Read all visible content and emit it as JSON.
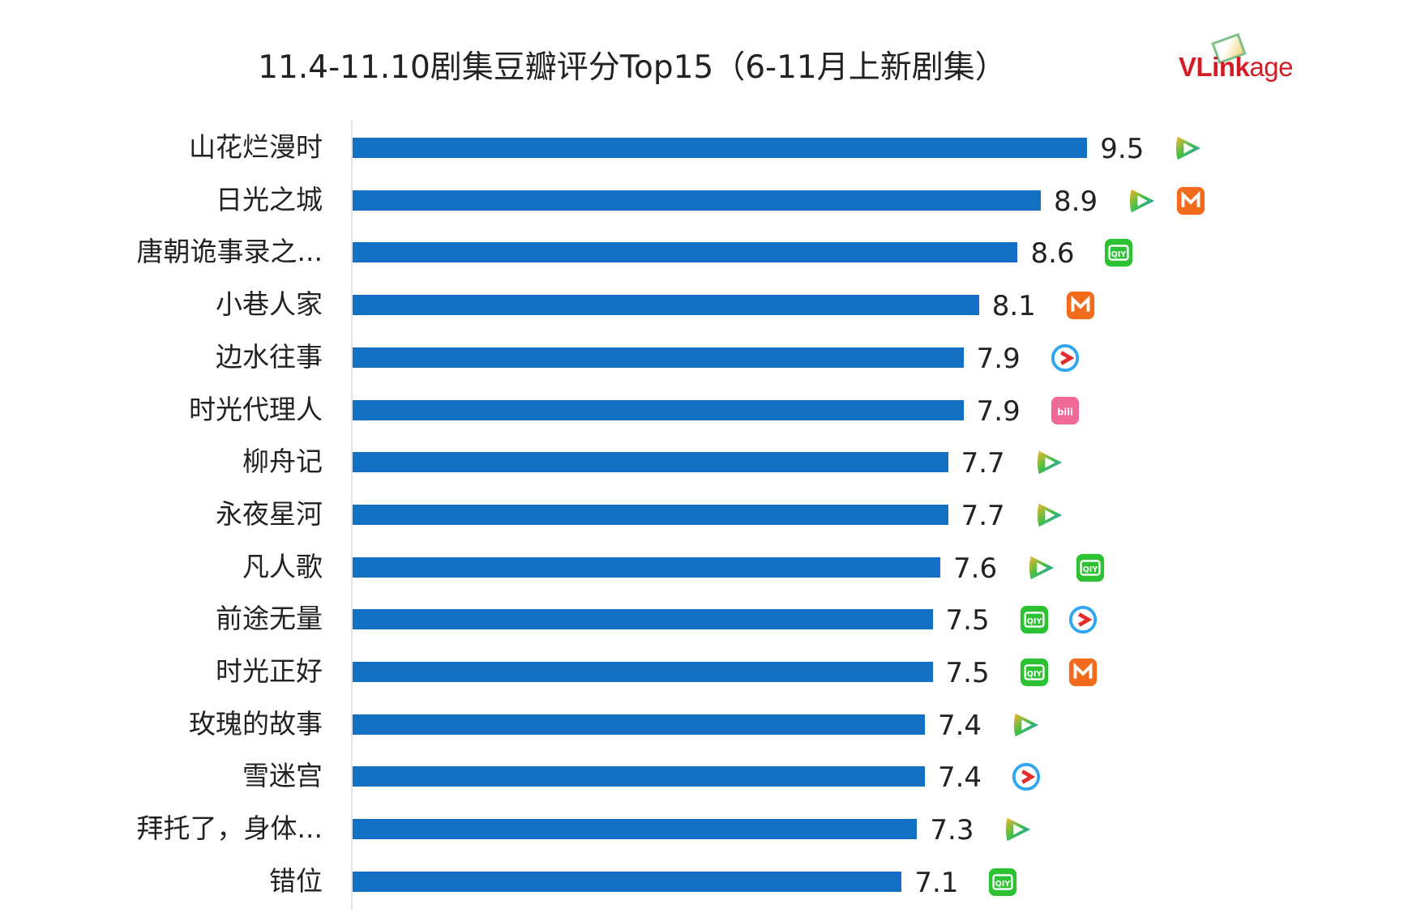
{
  "chart_data": {
    "type": "bar",
    "orientation": "horizontal",
    "title": "11.4-11.10剧集豆瓣评分Top15（6-11月上新剧集）",
    "logo_text": "VLinkage",
    "xlabel": "",
    "ylabel": "",
    "xlim": [
      0,
      10
    ],
    "grid": false,
    "categories": [
      "山花烂漫时",
      "日光之城",
      "唐朝诡事录之...",
      "小巷人家",
      "边水往事",
      "时光代理人",
      "柳舟记",
      "永夜星河",
      "凡人歌",
      "前途无量",
      "时光正好",
      "玫瑰的故事",
      "雪迷宫",
      "拜托了，身体...",
      "错位"
    ],
    "values": [
      9.5,
      8.9,
      8.6,
      8.1,
      7.9,
      7.9,
      7.7,
      7.7,
      7.6,
      7.5,
      7.5,
      7.4,
      7.4,
      7.3,
      7.1
    ],
    "value_labels": [
      "9.5",
      "8.9",
      "8.6",
      "8.1",
      "7.9",
      "7.9",
      "7.7",
      "7.7",
      "7.6",
      "7.5",
      "7.5",
      "7.4",
      "7.4",
      "7.3",
      "7.1"
    ],
    "platforms": [
      [
        "tencent-video"
      ],
      [
        "tencent-video",
        "mango-tv"
      ],
      [
        "iqiyi"
      ],
      [
        "mango-tv"
      ],
      [
        "youku"
      ],
      [
        "bilibili"
      ],
      [
        "tencent-video"
      ],
      [
        "tencent-video"
      ],
      [
        "tencent-video",
        "iqiyi"
      ],
      [
        "iqiyi",
        "youku"
      ],
      [
        "iqiyi",
        "mango-tv"
      ],
      [
        "tencent-video"
      ],
      [
        "youku"
      ],
      [
        "tencent-video"
      ],
      [
        "iqiyi"
      ]
    ],
    "colors": {
      "bar": "#1470c4",
      "logo": "#d21d24"
    }
  }
}
